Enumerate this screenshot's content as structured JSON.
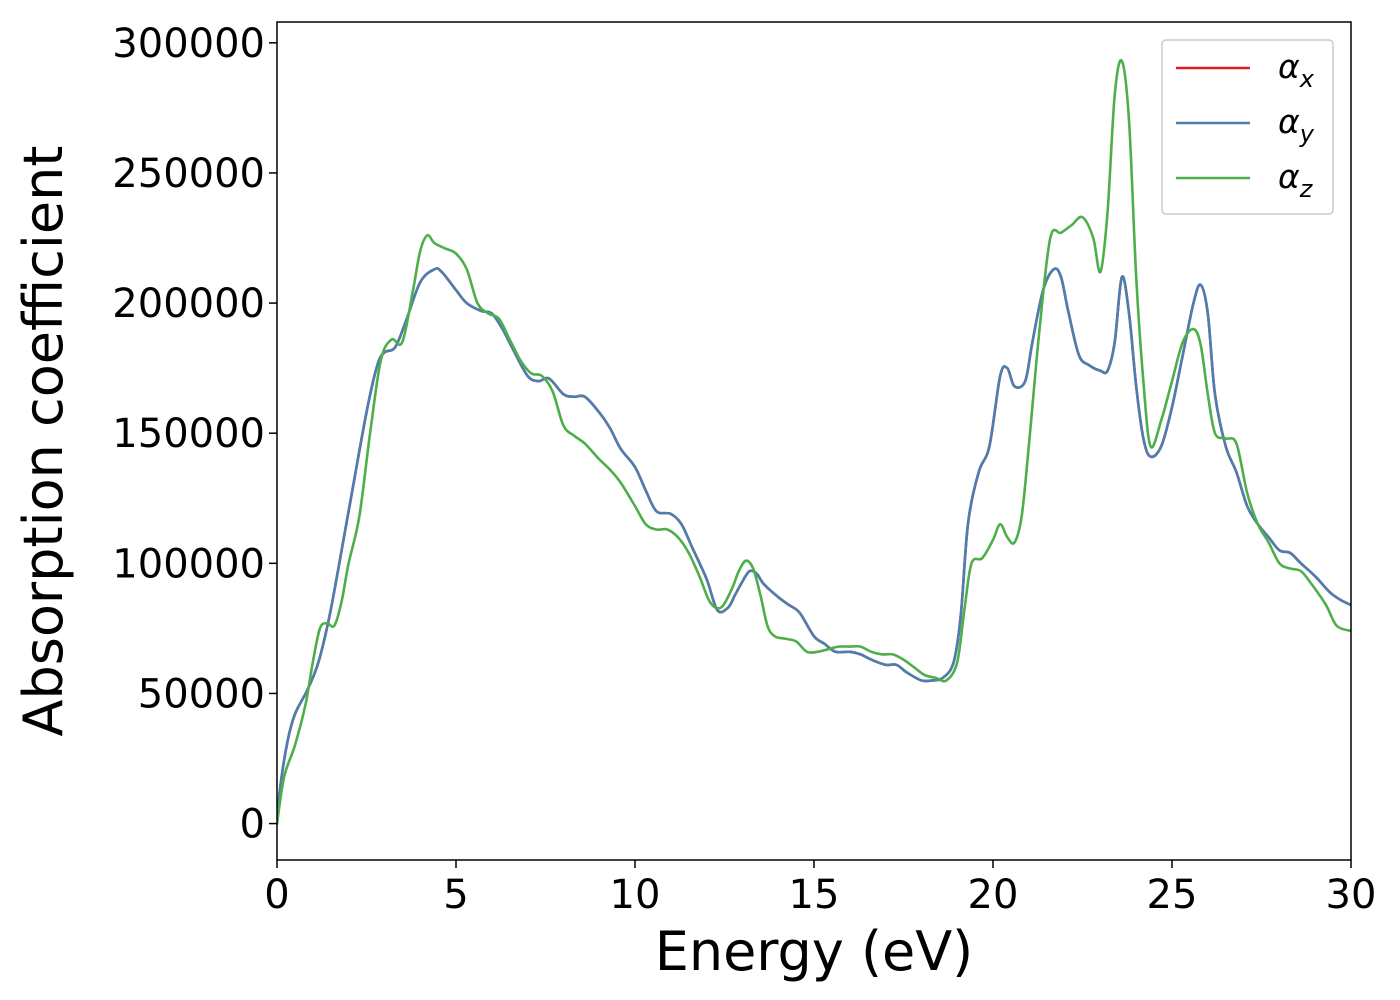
{
  "chart_data": {
    "type": "line",
    "xlabel": "Energy (eV)",
    "ylabel": "Absorption coefficient",
    "xlim": [
      0,
      30
    ],
    "ylim": [
      -14000,
      308000
    ],
    "xticks": [
      0,
      5,
      10,
      15,
      20,
      25,
      30
    ],
    "yticks": [
      0,
      50000,
      100000,
      150000,
      200000,
      250000,
      300000
    ],
    "grid": false,
    "legend_position": "top-right",
    "series": [
      {
        "name": "α_x",
        "symbol": "α",
        "sub": "x",
        "color": "#e41a1c",
        "x": [
          0,
          0.1,
          0.3,
          0.5,
          0.8,
          1.0,
          1.2,
          1.5,
          2.0,
          2.5,
          2.8,
          3.0,
          3.3,
          3.6,
          4.0,
          4.4,
          4.6,
          5.0,
          5.3,
          5.7,
          6.0,
          6.3,
          6.6,
          7.0,
          7.3,
          7.6,
          8.0,
          8.3,
          8.6,
          9.0,
          9.3,
          9.6,
          10.0,
          10.3,
          10.6,
          11.0,
          11.3,
          11.6,
          12.0,
          12.3,
          12.6,
          12.8,
          13.0,
          13.2,
          13.4,
          13.6,
          14.0,
          14.3,
          14.6,
          15.0,
          15.3,
          15.6,
          16.0,
          16.3,
          16.6,
          17.0,
          17.3,
          17.6,
          18.0,
          18.3,
          18.6,
          18.9,
          19.1,
          19.3,
          19.6,
          19.9,
          20.2,
          20.4,
          20.6,
          20.9,
          21.1,
          21.4,
          21.7,
          21.9,
          22.1,
          22.4,
          22.7,
          23.0,
          23.2,
          23.4,
          23.6,
          23.8,
          24.0,
          24.2,
          24.4,
          24.7,
          25.0,
          25.3,
          25.6,
          25.8,
          26.0,
          26.2,
          26.5,
          26.8,
          27.1,
          27.4,
          27.7,
          28.0,
          28.3,
          28.6,
          29.0,
          29.4,
          29.7,
          30.0
        ],
        "y": [
          0,
          15000,
          32000,
          42000,
          50000,
          56000,
          64000,
          82000,
          120000,
          158000,
          176000,
          181000,
          183000,
          193000,
          208000,
          213000,
          212000,
          205000,
          200000,
          197000,
          196000,
          190000,
          182000,
          172000,
          170000,
          171000,
          165000,
          164000,
          164000,
          158000,
          152000,
          144000,
          137000,
          128000,
          120000,
          119000,
          115000,
          106000,
          94000,
          82000,
          83000,
          88000,
          93000,
          97000,
          96000,
          92000,
          87000,
          84000,
          81000,
          72000,
          69000,
          66000,
          66000,
          65000,
          63000,
          61000,
          61000,
          58000,
          55000,
          55000,
          56000,
          62000,
          80000,
          115000,
          135000,
          145000,
          172000,
          175000,
          168000,
          170000,
          185000,
          205000,
          213000,
          210000,
          197000,
          180000,
          176000,
          174000,
          174000,
          185000,
          210000,
          196000,
          168000,
          148000,
          141000,
          145000,
          160000,
          180000,
          200000,
          207000,
          196000,
          165000,
          145000,
          135000,
          122000,
          115000,
          110000,
          105000,
          104000,
          100000,
          95000,
          89000,
          86000,
          84000
        ]
      },
      {
        "name": "α_y",
        "symbol": "α",
        "sub": "y",
        "color": "#4a7fb0",
        "x": [
          0,
          0.1,
          0.3,
          0.5,
          0.8,
          1.0,
          1.2,
          1.5,
          2.0,
          2.5,
          2.8,
          3.0,
          3.3,
          3.6,
          4.0,
          4.4,
          4.6,
          5.0,
          5.3,
          5.7,
          6.0,
          6.3,
          6.6,
          7.0,
          7.3,
          7.6,
          8.0,
          8.3,
          8.6,
          9.0,
          9.3,
          9.6,
          10.0,
          10.3,
          10.6,
          11.0,
          11.3,
          11.6,
          12.0,
          12.3,
          12.6,
          12.8,
          13.0,
          13.2,
          13.4,
          13.6,
          14.0,
          14.3,
          14.6,
          15.0,
          15.3,
          15.6,
          16.0,
          16.3,
          16.6,
          17.0,
          17.3,
          17.6,
          18.0,
          18.3,
          18.6,
          18.9,
          19.1,
          19.3,
          19.6,
          19.9,
          20.2,
          20.4,
          20.6,
          20.9,
          21.1,
          21.4,
          21.7,
          21.9,
          22.1,
          22.4,
          22.7,
          23.0,
          23.2,
          23.4,
          23.6,
          23.8,
          24.0,
          24.2,
          24.4,
          24.7,
          25.0,
          25.3,
          25.6,
          25.8,
          26.0,
          26.2,
          26.5,
          26.8,
          27.1,
          27.4,
          27.7,
          28.0,
          28.3,
          28.6,
          29.0,
          29.4,
          29.7,
          30.0
        ],
        "y": [
          0,
          15000,
          32000,
          42000,
          50000,
          56000,
          64000,
          82000,
          120000,
          158000,
          176000,
          181000,
          183000,
          193000,
          208000,
          213000,
          212000,
          205000,
          200000,
          197000,
          196000,
          190000,
          182000,
          172000,
          170000,
          171000,
          165000,
          164000,
          164000,
          158000,
          152000,
          144000,
          137000,
          128000,
          120000,
          119000,
          115000,
          106000,
          94000,
          82000,
          83000,
          88000,
          93000,
          97000,
          96000,
          92000,
          87000,
          84000,
          81000,
          72000,
          69000,
          66000,
          66000,
          65000,
          63000,
          61000,
          61000,
          58000,
          55000,
          55000,
          56000,
          62000,
          80000,
          115000,
          135000,
          145000,
          172000,
          175000,
          168000,
          170000,
          185000,
          205000,
          213000,
          210000,
          197000,
          180000,
          176000,
          174000,
          174000,
          185000,
          210000,
          196000,
          168000,
          148000,
          141000,
          145000,
          160000,
          180000,
          200000,
          207000,
          196000,
          165000,
          145000,
          135000,
          122000,
          115000,
          110000,
          105000,
          104000,
          100000,
          95000,
          89000,
          86000,
          84000
        ]
      },
      {
        "name": "α_z",
        "symbol": "α",
        "sub": "z",
        "color": "#4daf4a",
        "x": [
          0,
          0.2,
          0.5,
          0.8,
          1.0,
          1.2,
          1.4,
          1.6,
          1.8,
          2.0,
          2.3,
          2.6,
          2.9,
          3.2,
          3.5,
          3.8,
          4.0,
          4.2,
          4.4,
          4.7,
          5.0,
          5.3,
          5.6,
          5.9,
          6.2,
          6.5,
          6.8,
          7.1,
          7.4,
          7.7,
          8.0,
          8.3,
          8.6,
          9.0,
          9.3,
          9.6,
          10.0,
          10.3,
          10.6,
          10.9,
          11.2,
          11.5,
          11.8,
          12.1,
          12.4,
          12.7,
          12.9,
          13.1,
          13.3,
          13.5,
          13.7,
          13.9,
          14.2,
          14.5,
          14.8,
          15.1,
          15.4,
          15.7,
          16.0,
          16.3,
          16.6,
          16.9,
          17.2,
          17.5,
          17.8,
          18.1,
          18.4,
          18.7,
          19.0,
          19.2,
          19.4,
          19.7,
          20.0,
          20.2,
          20.4,
          20.6,
          20.8,
          21.0,
          21.3,
          21.6,
          21.9,
          22.2,
          22.5,
          22.8,
          23.0,
          23.2,
          23.4,
          23.6,
          23.8,
          24.0,
          24.2,
          24.4,
          24.7,
          25.0,
          25.3,
          25.6,
          25.8,
          26.0,
          26.2,
          26.5,
          26.8,
          27.1,
          27.4,
          27.7,
          28.0,
          28.3,
          28.6,
          28.9,
          29.3,
          29.6,
          30.0
        ],
        "y": [
          0,
          18000,
          30000,
          46000,
          62000,
          75000,
          77000,
          76000,
          85000,
          100000,
          118000,
          150000,
          178000,
          186000,
          185000,
          205000,
          220000,
          226000,
          223000,
          221000,
          219000,
          213000,
          200000,
          196000,
          194000,
          186000,
          178000,
          173000,
          172000,
          166000,
          153000,
          149000,
          146000,
          140000,
          136000,
          131000,
          122000,
          115000,
          113000,
          113000,
          110000,
          104000,
          95000,
          85000,
          83000,
          90000,
          97000,
          101000,
          98000,
          88000,
          76000,
          72000,
          71000,
          70000,
          66000,
          66000,
          67000,
          68000,
          68000,
          68000,
          66000,
          65000,
          65000,
          63000,
          60000,
          57000,
          56000,
          55000,
          62000,
          82000,
          100000,
          102000,
          109000,
          115000,
          110000,
          108000,
          118000,
          145000,
          190000,
          225000,
          227000,
          230000,
          233000,
          225000,
          212000,
          235000,
          280000,
          293000,
          270000,
          210000,
          170000,
          145000,
          155000,
          170000,
          185000,
          190000,
          184000,
          165000,
          150000,
          148000,
          146000,
          127000,
          115000,
          108000,
          100000,
          98000,
          97000,
          92000,
          84000,
          76000,
          74000
        ]
      }
    ]
  }
}
